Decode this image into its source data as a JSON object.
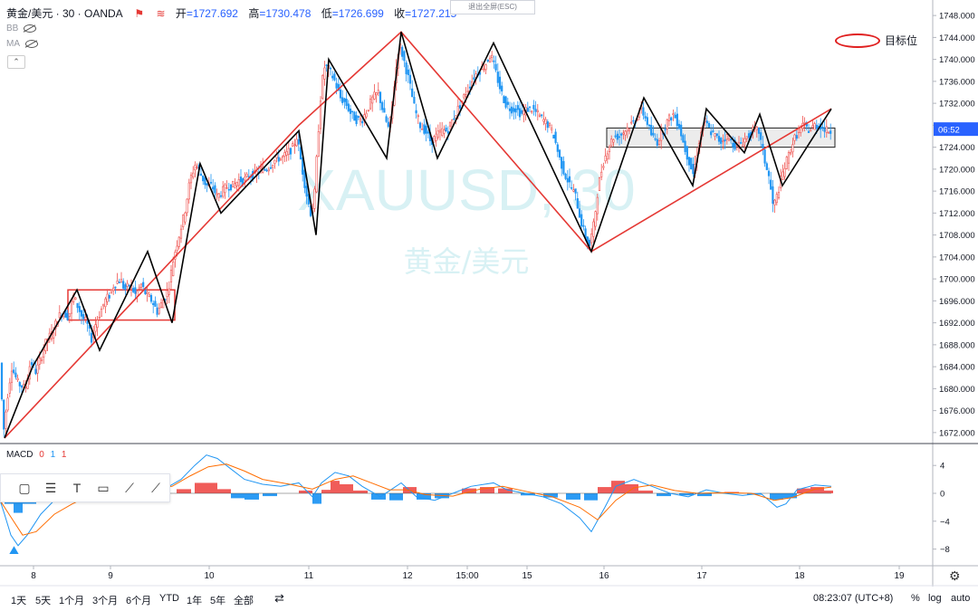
{
  "header": {
    "symbol": "黄金/美元 · 30 · OANDA",
    "open_label": "开",
    "open": "=1727.692",
    "high_label": "高",
    "high": "=1730.478",
    "low_label": "低",
    "low": "=1726.699",
    "close_label": "收",
    "close": "=1727.215"
  },
  "indicators": {
    "bb": "BB",
    "ma": "MA"
  },
  "exit_fullscreen": "退出全屏(ESC)",
  "watermark": {
    "symbol": "XAUUSD, 30",
    "name": "黄金/美元"
  },
  "legend_target": "目标位",
  "price_label": "06:52",
  "macd": {
    "label": "MACD",
    "p1": "0",
    "p2": "1",
    "p3": "1",
    "ticks": [
      "4",
      "0",
      "−4",
      "−8"
    ]
  },
  "time_axis": [
    "8",
    "9",
    "10",
    "11",
    "12",
    "15:00",
    "15",
    "16",
    "17",
    "18",
    "19"
  ],
  "bottom_bar": {
    "ranges": [
      "1天",
      "5天",
      "1个月",
      "3个月",
      "6个月",
      "YTD",
      "1年",
      "5年",
      "全部"
    ],
    "clock": "08:23:07 (UTC+8)",
    "percent": "%",
    "log": "log",
    "auto": "auto"
  },
  "toolbar_tools": [
    "rectangle-icon",
    "lines-icon",
    "text-icon",
    "callout-icon",
    "brush-icon",
    "trendline-icon"
  ],
  "colors": {
    "up": "#ef5350",
    "down": "#2196f3",
    "red_line": "#e53935",
    "black_line": "#000000",
    "badge": "#2962ff"
  },
  "chart_data": {
    "type": "candlestick",
    "symbol": "XAUUSD",
    "interval": "30",
    "ylim": [
      1670,
      1750
    ],
    "y_ticks": [
      1672,
      1676,
      1680,
      1684,
      1688,
      1692,
      1696,
      1700,
      1704,
      1708,
      1712,
      1716,
      1720,
      1724,
      1728,
      1732,
      1736,
      1740,
      1744,
      1748
    ],
    "price_series": [
      [
        0,
        1690
      ],
      [
        3,
        1682
      ],
      [
        6,
        1672
      ],
      [
        10,
        1678
      ],
      [
        15,
        1684
      ],
      [
        22,
        1681
      ],
      [
        30,
        1680
      ],
      [
        36,
        1685
      ],
      [
        42,
        1683
      ],
      [
        48,
        1686
      ],
      [
        54,
        1689
      ],
      [
        60,
        1690
      ],
      [
        66,
        1693
      ],
      [
        72,
        1694
      ],
      [
        78,
        1693
      ],
      [
        83,
        1697
      ],
      [
        88,
        1695
      ],
      [
        93,
        1693
      ],
      [
        98,
        1692
      ],
      [
        103,
        1689
      ],
      [
        108,
        1692
      ],
      [
        113,
        1694
      ],
      [
        118,
        1696
      ],
      [
        123,
        1697
      ],
      [
        128,
        1699
      ],
      [
        135,
        1700
      ],
      [
        140,
        1698
      ],
      [
        146,
        1699
      ],
      [
        152,
        1697
      ],
      [
        158,
        1699
      ],
      [
        164,
        1697
      ],
      [
        170,
        1696
      ],
      [
        176,
        1694
      ],
      [
        182,
        1696
      ],
      [
        188,
        1698
      ],
      [
        194,
        1704
      ],
      [
        200,
        1708
      ],
      [
        206,
        1712
      ],
      [
        212,
        1718
      ],
      [
        218,
        1721
      ],
      [
        224,
        1719
      ],
      [
        230,
        1717
      ],
      [
        236,
        1717
      ],
      [
        242,
        1715
      ],
      [
        248,
        1716
      ],
      [
        254,
        1717
      ],
      [
        260,
        1717
      ],
      [
        266,
        1718
      ],
      [
        272,
        1718
      ],
      [
        278,
        1719
      ],
      [
        284,
        1719
      ],
      [
        290,
        1720
      ],
      [
        296,
        1720
      ],
      [
        302,
        1721
      ],
      [
        308,
        1722
      ],
      [
        314,
        1722
      ],
      [
        320,
        1723
      ],
      [
        326,
        1724
      ],
      [
        330,
        1726
      ],
      [
        334,
        1722
      ],
      [
        340,
        1716
      ],
      [
        345,
        1712
      ],
      [
        349,
        1714
      ],
      [
        353,
        1725
      ],
      [
        357,
        1735
      ],
      [
        361,
        1739
      ],
      [
        366,
        1738
      ],
      [
        372,
        1736
      ],
      [
        378,
        1733
      ],
      [
        384,
        1732
      ],
      [
        390,
        1730
      ],
      [
        396,
        1729
      ],
      [
        402,
        1729
      ],
      [
        408,
        1731
      ],
      [
        414,
        1733
      ],
      [
        420,
        1734
      ],
      [
        426,
        1730
      ],
      [
        432,
        1727
      ],
      [
        438,
        1736
      ],
      [
        443,
        1743
      ],
      [
        448,
        1740
      ],
      [
        454,
        1736
      ],
      [
        460,
        1731
      ],
      [
        466,
        1728
      ],
      [
        472,
        1727
      ],
      [
        478,
        1725
      ],
      [
        484,
        1726
      ],
      [
        490,
        1727
      ],
      [
        496,
        1727
      ],
      [
        502,
        1729
      ],
      [
        508,
        1731
      ],
      [
        514,
        1733
      ],
      [
        520,
        1735
      ],
      [
        526,
        1737
      ],
      [
        532,
        1738
      ],
      [
        538,
        1739
      ],
      [
        544,
        1741
      ],
      [
        549,
        1738
      ],
      [
        554,
        1735
      ],
      [
        560,
        1732
      ],
      [
        566,
        1731
      ],
      [
        572,
        1731
      ],
      [
        578,
        1730
      ],
      [
        584,
        1731
      ],
      [
        590,
        1731
      ],
      [
        596,
        1730
      ],
      [
        602,
        1729
      ],
      [
        608,
        1728
      ],
      [
        614,
        1726
      ],
      [
        620,
        1722
      ],
      [
        626,
        1719
      ],
      [
        632,
        1717
      ],
      [
        638,
        1715
      ],
      [
        643,
        1711
      ],
      [
        648,
        1708
      ],
      [
        653,
        1706
      ],
      [
        658,
        1710
      ],
      [
        663,
        1717
      ],
      [
        668,
        1721
      ],
      [
        674,
        1724
      ],
      [
        680,
        1726
      ],
      [
        686,
        1726
      ],
      [
        692,
        1727
      ],
      [
        698,
        1728
      ],
      [
        704,
        1729
      ],
      [
        710,
        1731
      ],
      [
        716,
        1729
      ],
      [
        722,
        1726
      ],
      [
        728,
        1725
      ],
      [
        734,
        1727
      ],
      [
        740,
        1729
      ],
      [
        746,
        1730
      ],
      [
        752,
        1728
      ],
      [
        758,
        1724
      ],
      [
        764,
        1721
      ],
      [
        768,
        1719
      ],
      [
        774,
        1725
      ],
      [
        780,
        1729
      ],
      [
        786,
        1727
      ],
      [
        792,
        1726
      ],
      [
        798,
        1725
      ],
      [
        804,
        1726
      ],
      [
        810,
        1725
      ],
      [
        816,
        1724
      ],
      [
        822,
        1725
      ],
      [
        828,
        1726
      ],
      [
        834,
        1727
      ],
      [
        840,
        1727
      ],
      [
        846,
        1722
      ],
      [
        852,
        1718
      ],
      [
        856,
        1713
      ],
      [
        860,
        1715
      ],
      [
        866,
        1719
      ],
      [
        872,
        1722
      ],
      [
        878,
        1725
      ],
      [
        884,
        1727
      ],
      [
        890,
        1728
      ],
      [
        896,
        1727
      ],
      [
        902,
        1728
      ],
      [
        908,
        1728
      ],
      [
        914,
        1727
      ],
      [
        918,
        1727
      ]
    ],
    "red_zigzag": [
      [
        5,
        1671
      ],
      [
        330,
        1728
      ],
      [
        443,
        1745
      ],
      [
        653,
        1705
      ],
      [
        918,
        1731
      ]
    ],
    "black_zigzag": [
      [
        5,
        1671
      ],
      [
        36,
        1684
      ],
      [
        85,
        1698
      ],
      [
        110,
        1687
      ],
      [
        163,
        1705
      ],
      [
        190,
        1692
      ],
      [
        221,
        1721
      ],
      [
        244,
        1712
      ],
      [
        330,
        1727
      ],
      [
        349,
        1708
      ],
      [
        363,
        1740
      ],
      [
        427,
        1722
      ],
      [
        443,
        1745
      ],
      [
        483,
        1722
      ],
      [
        545,
        1743
      ],
      [
        653,
        1705
      ],
      [
        711,
        1733
      ],
      [
        765,
        1717
      ],
      [
        780,
        1731
      ],
      [
        822,
        1723
      ],
      [
        839,
        1730
      ],
      [
        864,
        1717
      ],
      [
        918,
        1731
      ]
    ],
    "rect_red": {
      "x0": 75,
      "x1": 193,
      "y_top": 1698,
      "y_bottom": 1692.5
    },
    "rect_gray": {
      "x0": 670,
      "x1": 922,
      "y_top": 1727.5,
      "y_bottom": 1724
    },
    "current_price": 1727.215,
    "macd_ylim": [
      -10,
      6
    ],
    "macd_series": [
      [
        0,
        -1
      ],
      [
        5,
        -3
      ],
      [
        12,
        -6
      ],
      [
        20,
        -7.5
      ],
      [
        30,
        -6
      ],
      [
        45,
        -3
      ],
      [
        60,
        -1
      ],
      [
        80,
        0
      ],
      [
        100,
        0.5
      ],
      [
        120,
        0.5
      ],
      [
        140,
        1
      ],
      [
        160,
        1
      ],
      [
        180,
        0.5
      ],
      [
        200,
        2
      ],
      [
        215,
        4
      ],
      [
        228,
        5.5
      ],
      [
        240,
        5
      ],
      [
        255,
        3.5
      ],
      [
        270,
        2
      ],
      [
        290,
        1.3
      ],
      [
        310,
        1
      ],
      [
        330,
        1.5
      ],
      [
        345,
        -0.5
      ],
      [
        355,
        1.5
      ],
      [
        370,
        3
      ],
      [
        385,
        2.5
      ],
      [
        400,
        1
      ],
      [
        420,
        -0.5
      ],
      [
        443,
        1.5
      ],
      [
        460,
        -0.5
      ],
      [
        480,
        -1
      ],
      [
        500,
        0
      ],
      [
        520,
        1
      ],
      [
        545,
        1.5
      ],
      [
        560,
        0.5
      ],
      [
        580,
        0
      ],
      [
        600,
        -0.5
      ],
      [
        620,
        -1.5
      ],
      [
        640,
        -3.5
      ],
      [
        653,
        -5.5
      ],
      [
        668,
        -2
      ],
      [
        680,
        1
      ],
      [
        700,
        2
      ],
      [
        720,
        1
      ],
      [
        740,
        0
      ],
      [
        760,
        -0.5
      ],
      [
        780,
        0.5
      ],
      [
        800,
        0
      ],
      [
        820,
        -0.3
      ],
      [
        840,
        0
      ],
      [
        858,
        -2
      ],
      [
        868,
        -1.5
      ],
      [
        880,
        0.5
      ],
      [
        900,
        1.2
      ],
      [
        918,
        1
      ]
    ],
    "signal_series": [
      [
        0,
        -1
      ],
      [
        10,
        -3
      ],
      [
        25,
        -6
      ],
      [
        40,
        -5.5
      ],
      [
        60,
        -3
      ],
      [
        80,
        -1.5
      ],
      [
        100,
        -0.3
      ],
      [
        130,
        0.5
      ],
      [
        160,
        0.8
      ],
      [
        190,
        1
      ],
      [
        210,
        2.5
      ],
      [
        230,
        3.8
      ],
      [
        250,
        4.2
      ],
      [
        270,
        3.2
      ],
      [
        290,
        2
      ],
      [
        320,
        1.3
      ],
      [
        345,
        0.6
      ],
      [
        370,
        2
      ],
      [
        390,
        2.5
      ],
      [
        410,
        1.5
      ],
      [
        430,
        0.5
      ],
      [
        450,
        0.5
      ],
      [
        470,
        -0.2
      ],
      [
        500,
        -0.4
      ],
      [
        530,
        0.6
      ],
      [
        555,
        1
      ],
      [
        580,
        0.3
      ],
      [
        610,
        -0.5
      ],
      [
        640,
        -2
      ],
      [
        660,
        -3.8
      ],
      [
        680,
        -1
      ],
      [
        700,
        0.8
      ],
      [
        720,
        1.2
      ],
      [
        745,
        0.4
      ],
      [
        770,
        0
      ],
      [
        800,
        0.1
      ],
      [
        830,
        0
      ],
      [
        855,
        -1
      ],
      [
        875,
        -0.6
      ],
      [
        900,
        0.6
      ],
      [
        918,
        0.9
      ]
    ],
    "macd_histogram": [
      [
        5,
        -1.5
      ],
      [
        15,
        -2.8
      ],
      [
        25,
        -1.5
      ],
      [
        40,
        -0.2
      ],
      [
        195,
        0.6
      ],
      [
        215,
        1.5
      ],
      [
        230,
        1.5
      ],
      [
        240,
        0.6
      ],
      [
        255,
        -0.7
      ],
      [
        270,
        -0.9
      ],
      [
        290,
        -0.4
      ],
      [
        330,
        0.4
      ],
      [
        345,
        -1.5
      ],
      [
        355,
        0.5
      ],
      [
        365,
        1.8
      ],
      [
        375,
        1.3
      ],
      [
        390,
        0.4
      ],
      [
        410,
        -0.9
      ],
      [
        430,
        -1
      ],
      [
        445,
        0.9
      ],
      [
        460,
        -0.9
      ],
      [
        480,
        -0.7
      ],
      [
        510,
        0.7
      ],
      [
        530,
        0.9
      ],
      [
        550,
        0.7
      ],
      [
        575,
        -0.3
      ],
      [
        600,
        -0.6
      ],
      [
        625,
        -0.9
      ],
      [
        645,
        -1
      ],
      [
        660,
        0.9
      ],
      [
        675,
        1.8
      ],
      [
        690,
        1.3
      ],
      [
        705,
        0.4
      ],
      [
        725,
        -0.4
      ],
      [
        750,
        -0.3
      ],
      [
        770,
        -0.4
      ],
      [
        800,
        0.2
      ],
      [
        825,
        -0.2
      ],
      [
        850,
        -0.9
      ],
      [
        865,
        -0.7
      ],
      [
        880,
        0.7
      ],
      [
        895,
        0.9
      ],
      [
        910,
        0.4
      ]
    ]
  }
}
